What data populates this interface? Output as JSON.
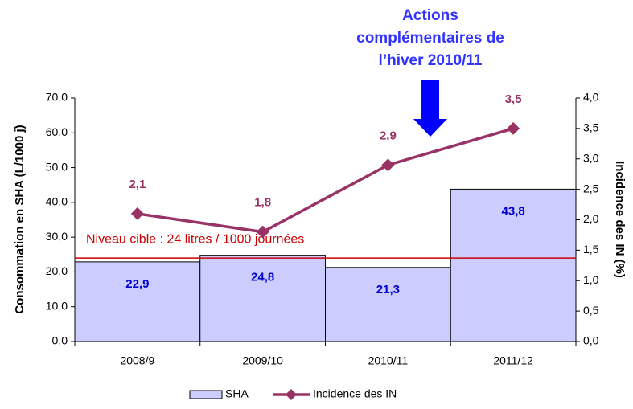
{
  "chart_data": {
    "type": "bar",
    "categories": [
      "2008/9",
      "2009/10",
      "2010/11",
      "2011/12"
    ],
    "series": [
      {
        "name": "SHA",
        "type": "bar",
        "color": "#ccccff",
        "values": [
          22.9,
          24.8,
          21.3,
          43.8
        ],
        "value_labels": [
          "22,9",
          "24,8",
          "21,3",
          "43,8"
        ]
      },
      {
        "name": "Incidence des IN",
        "type": "line",
        "axis": "y2",
        "color": "#993366",
        "values": [
          2.1,
          1.8,
          2.9,
          3.5
        ],
        "value_labels": [
          "2,1",
          "1,8",
          "2,9",
          "3,5"
        ]
      }
    ],
    "ylabel": "Consommation en SHA (L/1000 j)",
    "y2label": "Incidence des IN (%)",
    "ylim": [
      0,
      70
    ],
    "yticks": [
      {
        "value": 0,
        "label": "0,0"
      },
      {
        "value": 10,
        "label": "10,0"
      },
      {
        "value": 20,
        "label": "20,0"
      },
      {
        "value": 30,
        "label": "30,0"
      },
      {
        "value": 40,
        "label": "40,0"
      },
      {
        "value": 50,
        "label": "50,0"
      },
      {
        "value": 60,
        "label": "60,0"
      },
      {
        "value": 70,
        "label": "70,0"
      }
    ],
    "y2lim": [
      0,
      4
    ],
    "y2ticks": [
      {
        "value": 0,
        "label": "0,0"
      },
      {
        "value": 0.5,
        "label": "0,5"
      },
      {
        "value": 1,
        "label": "1,0"
      },
      {
        "value": 1.5,
        "label": "1,5"
      },
      {
        "value": 2,
        "label": "2,0"
      },
      {
        "value": 2.5,
        "label": "2,5"
      },
      {
        "value": 3,
        "label": "3,0"
      },
      {
        "value": 3.5,
        "label": "3,5"
      },
      {
        "value": 4,
        "label": "4,0"
      }
    ],
    "reference_line": {
      "value": 24,
      "label": "Niveau cible : 24 litres / 1000 journées",
      "color": "#cc0000"
    },
    "annotation": [
      "Actions",
      "complémentaires de",
      "l’hiver 2010/11"
    ],
    "grid": false,
    "legend": "bottom"
  }
}
